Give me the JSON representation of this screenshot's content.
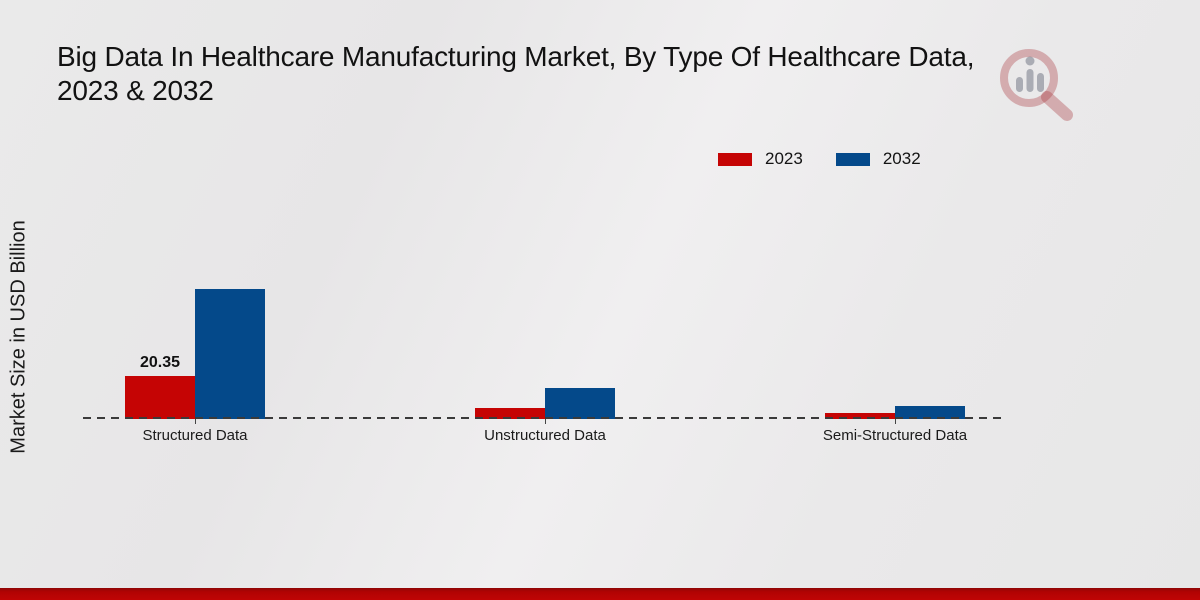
{
  "page": {
    "title_line1": "Big Data In Healthcare Manufacturing Market, By Type Of Healthcare Data,",
    "title_line2": "2023 & 2032",
    "ylabel": "Market Size in USD Billion"
  },
  "legend": {
    "items": [
      {
        "label": "2023",
        "color": "#c50404"
      },
      {
        "label": "2032",
        "color": "#04498a"
      }
    ]
  },
  "chart_data": {
    "type": "bar",
    "title": "Big Data In Healthcare Manufacturing Market, By Type Of Healthcare Data, 2023 & 2032",
    "xlabel": "",
    "ylabel": "Market Size in USD Billion",
    "categories": [
      "Structured Data",
      "Unstructured Data",
      "Semi-Structured Data"
    ],
    "series": [
      {
        "name": "2023",
        "color": "#c50404",
        "values": [
          20.35,
          5.2,
          2.7
        ]
      },
      {
        "name": "2032",
        "color": "#04498a",
        "values": [
          61.5,
          14.8,
          6.2
        ]
      }
    ],
    "annotations": [
      {
        "series_index": 0,
        "category_index": 0,
        "text": "20.35"
      }
    ],
    "ylim": [
      0,
      65
    ],
    "grid": false,
    "baseline": "dashed",
    "legend_position": "top-right"
  },
  "branding": {
    "watermark_icon": "market-research-magnifier-logo"
  }
}
